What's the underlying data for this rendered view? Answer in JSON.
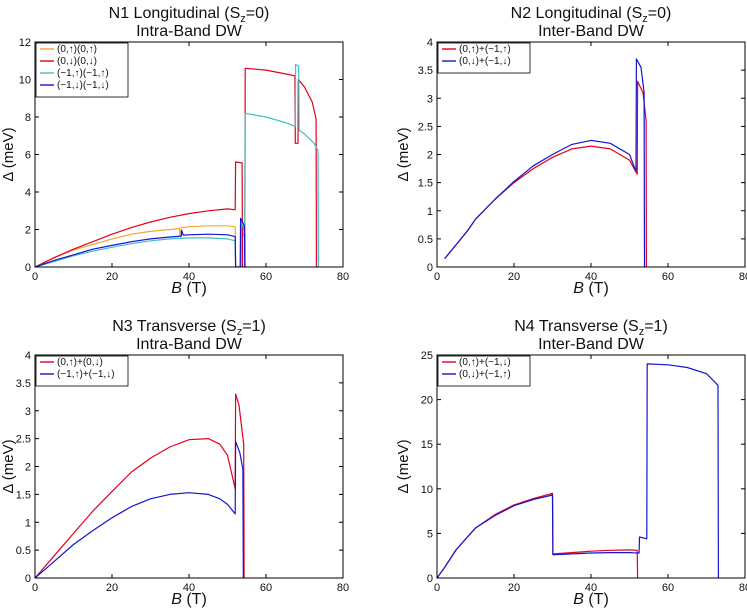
{
  "colors": {
    "orange": "#f0a830",
    "red": "#e3001b",
    "cyan": "#3ec1c1",
    "blue": "#1414d2"
  },
  "chart_data": [
    {
      "type": "line",
      "title": [
        "N1 Longitudinal (S",
        "z",
        "=0)"
      ],
      "subtitle": "Intra-Band DW",
      "xlabel": [
        "B",
        " (T)"
      ],
      "ylabel": "Δ (meV)",
      "xlim": [
        0,
        80
      ],
      "ylim": [
        0,
        12
      ],
      "xticks": [
        "0",
        "20",
        "40",
        "60",
        "80"
      ],
      "yticks": [
        "0",
        "2",
        "4",
        "6",
        "8",
        "10",
        "12"
      ],
      "legend_position": "top-left",
      "series": [
        {
          "name": "(0,↑)(0,↑)",
          "color": "orange",
          "points": [
            [
              0,
              0
            ],
            [
              5,
              0.5
            ],
            [
              10,
              0.9
            ],
            [
              15,
              1.2
            ],
            [
              20,
              1.5
            ],
            [
              25,
              1.75
            ],
            [
              30,
              1.9
            ],
            [
              35,
              2.0
            ],
            [
              37.5,
              2.05
            ],
            [
              37.6,
              1.7
            ],
            [
              38,
              2.1
            ],
            [
              40,
              2.15
            ],
            [
              45,
              2.2
            ],
            [
              50,
              2.2
            ],
            [
              52,
              2.15
            ],
            [
              52.1,
              0
            ],
            [
              53.5,
              0
            ],
            [
              53.6,
              2.1
            ],
            [
              54.5,
              1.5
            ],
            [
              54.6,
              0
            ]
          ]
        },
        {
          "name": "(0,↓)(0,↓)",
          "color": "red",
          "points": [
            [
              0,
              0
            ],
            [
              5,
              0.5
            ],
            [
              10,
              0.95
            ],
            [
              15,
              1.35
            ],
            [
              20,
              1.75
            ],
            [
              25,
              2.1
            ],
            [
              30,
              2.4
            ],
            [
              35,
              2.65
            ],
            [
              40,
              2.85
            ],
            [
              45,
              3.0
            ],
            [
              50,
              3.1
            ],
            [
              52,
              3.05
            ],
            [
              52.1,
              5.6
            ],
            [
              53.8,
              5.55
            ],
            [
              53.9,
              0
            ],
            [
              54.5,
              0
            ],
            [
              54.6,
              10.6
            ],
            [
              60,
              10.5
            ],
            [
              65,
              10.3
            ],
            [
              67.5,
              10.2
            ],
            [
              67.6,
              6.6
            ],
            [
              68.3,
              6.6
            ],
            [
              68.4,
              10.0
            ],
            [
              70,
              9.6
            ],
            [
              72,
              8.8
            ],
            [
              73,
              7.9
            ],
            [
              73.1,
              0
            ]
          ]
        },
        {
          "name": "(−1,↑)(−1,↑)",
          "color": "cyan",
          "points": [
            [
              0,
              0
            ],
            [
              5,
              0.3
            ],
            [
              10,
              0.6
            ],
            [
              15,
              0.85
            ],
            [
              20,
              1.05
            ],
            [
              25,
              1.25
            ],
            [
              30,
              1.4
            ],
            [
              35,
              1.5
            ],
            [
              40,
              1.55
            ],
            [
              45,
              1.55
            ],
            [
              50,
              1.5
            ],
            [
              52,
              1.4
            ],
            [
              52.1,
              0
            ],
            [
              53.5,
              0
            ],
            [
              53.6,
              2.5
            ],
            [
              54.5,
              1.8
            ],
            [
              54.6,
              8.2
            ],
            [
              60,
              8.0
            ],
            [
              65,
              7.7
            ],
            [
              67.6,
              7.5
            ],
            [
              67.7,
              10.8
            ],
            [
              68.5,
              10.7
            ],
            [
              68.6,
              7.3
            ],
            [
              70,
              7.1
            ],
            [
              72.5,
              6.6
            ],
            [
              73.5,
              6.2
            ],
            [
              73.6,
              0
            ]
          ]
        },
        {
          "name": "(−1,↓)(−1,↓)",
          "color": "blue",
          "points": [
            [
              0,
              0
            ],
            [
              5,
              0.35
            ],
            [
              10,
              0.65
            ],
            [
              15,
              0.95
            ],
            [
              20,
              1.15
            ],
            [
              25,
              1.35
            ],
            [
              30,
              1.5
            ],
            [
              35,
              1.6
            ],
            [
              38,
              1.65
            ],
            [
              38.1,
              1.95
            ],
            [
              38.5,
              1.7
            ],
            [
              40,
              1.72
            ],
            [
              45,
              1.75
            ],
            [
              50,
              1.72
            ],
            [
              52,
              1.62
            ],
            [
              52.1,
              0
            ],
            [
              53.3,
              0
            ],
            [
              53.4,
              2.6
            ],
            [
              54.4,
              2.2
            ],
            [
              54.5,
              0
            ]
          ]
        }
      ]
    },
    {
      "type": "line",
      "title": [
        "N2 Longitudinal (S",
        "z",
        "=0)"
      ],
      "subtitle": "Inter-Band DW",
      "xlabel": [
        "B",
        " (T)"
      ],
      "ylabel": "Δ (meV)",
      "xlim": [
        0,
        80
      ],
      "ylim": [
        0,
        4
      ],
      "xticks": [
        "0",
        "20",
        "40",
        "60",
        "80"
      ],
      "yticks": [
        "0",
        "0.5",
        "1",
        "1.5",
        "2",
        "2.5",
        "3",
        "3.5",
        "4"
      ],
      "legend_position": "top-left",
      "series": [
        {
          "name": "(0,↑)+(−1,↑)",
          "color": "red",
          "points": [
            [
              2,
              0.15
            ],
            [
              5,
              0.4
            ],
            [
              8,
              0.65
            ],
            [
              10,
              0.85
            ],
            [
              15,
              1.2
            ],
            [
              20,
              1.5
            ],
            [
              25,
              1.75
            ],
            [
              30,
              1.95
            ],
            [
              35,
              2.1
            ],
            [
              40,
              2.15
            ],
            [
              45,
              2.1
            ],
            [
              50,
              1.9
            ],
            [
              52,
              1.65
            ],
            [
              52.1,
              3.3
            ],
            [
              53.5,
              3.1
            ],
            [
              54.3,
              2.6
            ],
            [
              54.4,
              0
            ]
          ]
        },
        {
          "name": "(0,↓)+(−1,↓)",
          "color": "blue",
          "points": [
            [
              2,
              0.15
            ],
            [
              5,
              0.4
            ],
            [
              8,
              0.65
            ],
            [
              10,
              0.85
            ],
            [
              15,
              1.2
            ],
            [
              20,
              1.52
            ],
            [
              25,
              1.8
            ],
            [
              30,
              2.0
            ],
            [
              35,
              2.18
            ],
            [
              40,
              2.25
            ],
            [
              45,
              2.2
            ],
            [
              50,
              2.0
            ],
            [
              51.7,
              1.7
            ],
            [
              51.8,
              3.7
            ],
            [
              53,
              3.55
            ],
            [
              53.8,
              3.1
            ],
            [
              53.9,
              0
            ]
          ]
        }
      ]
    },
    {
      "type": "line",
      "title": [
        "N3 Transverse (S",
        "z",
        "=1)"
      ],
      "subtitle": "Intra-Band DW",
      "xlabel": [
        "B",
        " (T)"
      ],
      "ylabel": "Δ (meV)",
      "xlim": [
        0,
        80
      ],
      "ylim": [
        0,
        4
      ],
      "xticks": [
        "0",
        "20",
        "40",
        "60",
        "80"
      ],
      "yticks": [
        "0",
        "0.5",
        "1",
        "1.5",
        "2",
        "2.5",
        "3",
        "3.5",
        "4"
      ],
      "legend_position": "top-left",
      "series": [
        {
          "name": "(0,↑)+(0,↓)",
          "color": "red",
          "points": [
            [
              0,
              0
            ],
            [
              5,
              0.4
            ],
            [
              10,
              0.8
            ],
            [
              15,
              1.2
            ],
            [
              20,
              1.55
            ],
            [
              25,
              1.9
            ],
            [
              30,
              2.15
            ],
            [
              35,
              2.35
            ],
            [
              40,
              2.48
            ],
            [
              45,
              2.5
            ],
            [
              48,
              2.4
            ],
            [
              50,
              2.2
            ],
            [
              52,
              1.6
            ],
            [
              52.1,
              3.3
            ],
            [
              53,
              3.1
            ],
            [
              54.2,
              2.4
            ],
            [
              54.3,
              0
            ]
          ]
        },
        {
          "name": "(−1,↑)+(−1,↓)",
          "color": "blue",
          "points": [
            [
              0,
              0
            ],
            [
              5,
              0.3
            ],
            [
              10,
              0.6
            ],
            [
              15,
              0.85
            ],
            [
              20,
              1.08
            ],
            [
              25,
              1.28
            ],
            [
              30,
              1.42
            ],
            [
              35,
              1.5
            ],
            [
              40,
              1.53
            ],
            [
              45,
              1.5
            ],
            [
              48,
              1.42
            ],
            [
              50,
              1.32
            ],
            [
              52,
              1.15
            ],
            [
              52.1,
              2.45
            ],
            [
              53.2,
              2.25
            ],
            [
              54,
              1.95
            ],
            [
              54.1,
              0
            ]
          ]
        }
      ]
    },
    {
      "type": "line",
      "title": [
        "N4 Transverse (S",
        "z",
        "=1)"
      ],
      "subtitle": "Inter-Band DW",
      "xlabel": [
        "B",
        " (T)"
      ],
      "ylabel": "Δ (meV)",
      "xlim": [
        0,
        80
      ],
      "ylim": [
        0,
        25
      ],
      "xticks": [
        "0",
        "20",
        "40",
        "60",
        "80"
      ],
      "yticks": [
        "0",
        "5",
        "10",
        "15",
        "20",
        "25"
      ],
      "legend_position": "top-left",
      "series": [
        {
          "name": "(0,↑)+(−1,↓)",
          "color": "red",
          "points": [
            [
              0,
              0
            ],
            [
              2,
              1.2
            ],
            [
              5,
              3.2
            ],
            [
              10,
              5.6
            ],
            [
              15,
              7.1
            ],
            [
              20,
              8.2
            ],
            [
              25,
              8.9
            ],
            [
              30,
              9.5
            ],
            [
              30.1,
              2.7
            ],
            [
              35,
              2.85
            ],
            [
              40,
              3.0
            ],
            [
              45,
              3.1
            ],
            [
              50,
              3.15
            ],
            [
              52,
              3.1
            ],
            [
              52.1,
              0
            ]
          ]
        },
        {
          "name": "(0,↓)+(−1,↑)",
          "color": "blue",
          "points": [
            [
              0,
              0
            ],
            [
              2,
              1.2
            ],
            [
              5,
              3.2
            ],
            [
              10,
              5.6
            ],
            [
              15,
              7.0
            ],
            [
              20,
              8.1
            ],
            [
              25,
              8.8
            ],
            [
              30,
              9.3
            ],
            [
              30.1,
              2.6
            ],
            [
              35,
              2.7
            ],
            [
              40,
              2.8
            ],
            [
              45,
              2.85
            ],
            [
              50,
              2.85
            ],
            [
              52,
              2.8
            ],
            [
              52.5,
              2.8
            ],
            [
              52.6,
              4.6
            ],
            [
              54.5,
              4.4
            ],
            [
              54.6,
              24
            ],
            [
              60,
              23.9
            ],
            [
              65,
              23.6
            ],
            [
              70,
              22.9
            ],
            [
              73,
              21.6
            ],
            [
              73.1,
              0
            ]
          ]
        }
      ]
    }
  ]
}
